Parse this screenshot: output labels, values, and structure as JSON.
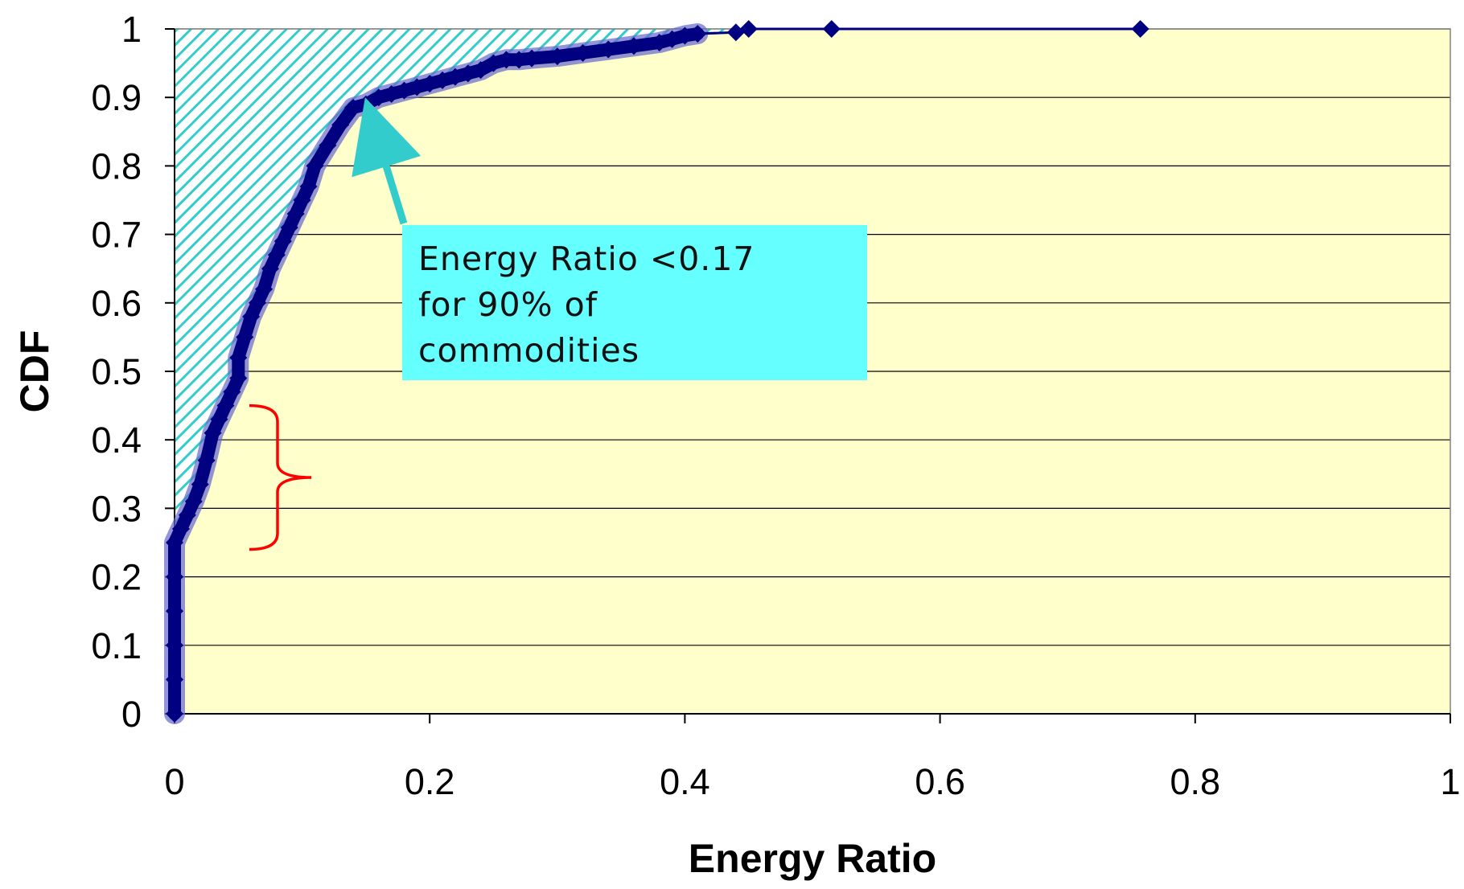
{
  "chart_data": {
    "type": "line",
    "xlabel": "Energy Ratio",
    "ylabel": "CDF",
    "xlim": [
      0,
      1
    ],
    "ylim": [
      0,
      1
    ],
    "x_ticks": [
      "0",
      "0.2",
      "0.4",
      "0.6",
      "0.8",
      "1"
    ],
    "y_ticks": [
      "0",
      "0.1",
      "0.2",
      "0.3",
      "0.4",
      "0.5",
      "0.6",
      "0.7",
      "0.8",
      "0.9",
      "1"
    ],
    "grid": "horizontal",
    "plot_background": "#ffffcc",
    "series": [
      {
        "color": "#000080",
        "marker": "diamond",
        "x": [
          0,
          0,
          0,
          0,
          0,
          0,
          0.005,
          0.01,
          0.015,
          0.02,
          0.025,
          0.03,
          0.035,
          0.04,
          0.045,
          0.05,
          0.05,
          0.055,
          0.06,
          0.065,
          0.07,
          0.075,
          0.08,
          0.085,
          0.09,
          0.095,
          0.1,
          0.105,
          0.11,
          0.12,
          0.13,
          0.14,
          0.15,
          0.16,
          0.17,
          0.18,
          0.19,
          0.2,
          0.21,
          0.22,
          0.23,
          0.24,
          0.25,
          0.26,
          0.27,
          0.28,
          0.3,
          0.32,
          0.34,
          0.36,
          0.38,
          0.39,
          0.4,
          0.41,
          0.44,
          0.45,
          0.515,
          0.757
        ],
        "y": [
          0,
          0.05,
          0.1,
          0.15,
          0.2,
          0.25,
          0.27,
          0.29,
          0.31,
          0.335,
          0.37,
          0.41,
          0.43,
          0.45,
          0.47,
          0.49,
          0.52,
          0.55,
          0.58,
          0.6,
          0.62,
          0.65,
          0.67,
          0.69,
          0.71,
          0.73,
          0.75,
          0.77,
          0.8,
          0.83,
          0.86,
          0.885,
          0.89,
          0.9,
          0.905,
          0.91,
          0.915,
          0.92,
          0.925,
          0.93,
          0.935,
          0.94,
          0.95,
          0.955,
          0.955,
          0.957,
          0.96,
          0.965,
          0.97,
          0.975,
          0.98,
          0.985,
          0.99,
          0.993,
          0.995,
          1,
          1,
          1
        ]
      }
    ],
    "shaded_region": {
      "color": "#33cccc",
      "pattern": "diagonal-hatch"
    },
    "annotations": {
      "callout_lines": [
        "Energy Ratio <0.17",
        "for 90% of",
        "commodities"
      ],
      "callout_fill": "#66ffff",
      "arrow_color": "#33cccc",
      "brace_color": "#ff0000",
      "brace_range": [
        0.24,
        0.45
      ]
    }
  }
}
